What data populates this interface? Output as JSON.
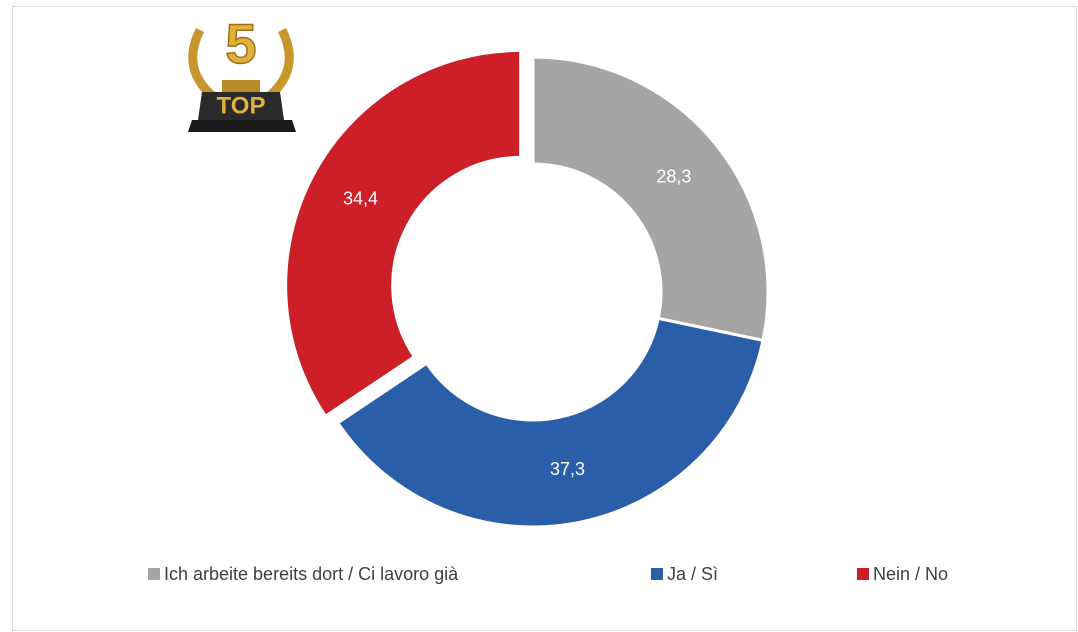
{
  "chart_data": {
    "type": "donut",
    "annotations": [
      "5",
      "TOP"
    ],
    "categories": [
      "Ich arbeite bereits dort / Ci lavoro già",
      "Ja / Sì",
      "Nein / No"
    ],
    "values": [
      28.3,
      37.3,
      34.4
    ],
    "value_labels": [
      "28,3",
      "37,3",
      "34,4"
    ],
    "colors": [
      "#a5a5a5",
      "#2b5ea9",
      "#cc1f27"
    ],
    "exploded": [
      false,
      false,
      true
    ],
    "legend": "bottom"
  }
}
